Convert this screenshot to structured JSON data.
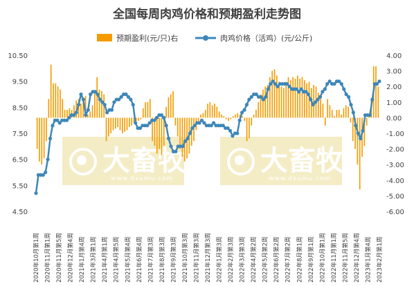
{
  "colors": {
    "bar": "#f59b00",
    "line": "#3d87b8",
    "watermark_bg": "#f4ecc5"
  },
  "watermark": {
    "brand": "大畜牧",
    "domain": "www.dxumu.com"
  },
  "chart_data": {
    "type": "bar+line",
    "title": "全国每周肉鸡价格和预期盈利走势图",
    "legend": {
      "placement": "top-center",
      "items": [
        "预期盈利(元/只)右",
        "肉鸡价格（活鸡）(元/公斤)"
      ]
    },
    "y_left": {
      "ylim": [
        4.5,
        10.5
      ],
      "ticks": [
        "4.50",
        "5.50",
        "6.50",
        "7.50",
        "8.50",
        "9.50",
        "10.50"
      ]
    },
    "y_right": {
      "ylim": [
        -6,
        4
      ],
      "ticks": [
        "-6.00",
        "-5.00",
        "-4.00",
        "-3.00",
        "-2.00",
        "-1.00",
        "0.00",
        "1.00",
        "2.00",
        "3.00",
        "4.00"
      ]
    },
    "x_tick_labels": [
      "2020年10月第1周",
      "2020年11月第1周",
      "2020年11月第5周",
      "2020年12月第4周",
      "2021年1月第4周",
      "2021年3月第1周",
      "2021年4月第1周",
      "2021年4月第5周",
      "2021年5月第4周",
      "2021年6月第4周",
      "2021年7月第3周",
      "2021年8月第3周",
      "2021年9月第3周",
      "2021年10月第3周",
      "2021年11月第3周",
      "2021年12月第3周",
      "2022年1月第3周",
      "2022年2月第3周",
      "2022年3月第3周",
      "2022年4月第2周",
      "2022年5月第2周",
      "2022年6月第2周",
      "2022年7月第2周",
      "2022年8月第1周",
      "2022年9月第1周",
      "2022年10月第1周",
      "2022年11月第1周",
      "2022年11月第5周",
      "2022年12月第4周",
      "2023年1月第4周",
      "2023年2月第1周"
    ],
    "series": [
      {
        "name": "预期盈利(元/只)右",
        "type": "bar",
        "axis": "right",
        "values": [
          -2.0,
          -2.8,
          -3.0,
          -2.6,
          -1.5,
          1.2,
          3.4,
          2.2,
          2.2,
          2.0,
          1.8,
          1.2,
          0.5,
          0.5,
          0.6,
          0.5,
          0.8,
          1.1,
          1.2,
          0.9,
          1.3,
          1.4,
          0.2,
          0.4,
          0.8,
          1.6,
          2.6,
          1.8,
          1.7,
          1.5,
          -1.5,
          -1.2,
          -1.0,
          -0.8,
          -0.7,
          -0.6,
          -0.8,
          -1.0,
          -0.9,
          -0.8,
          -0.6,
          -0.5,
          -0.3,
          -0.2,
          -0.2,
          -0.1,
          0.6,
          1.0,
          1.0,
          1.2,
          -1.5,
          -1.8,
          -2.3,
          -2.0,
          -2.4,
          -1.8,
          0.7,
          1.3,
          1.5,
          1.7,
          -0.5,
          -1.2,
          -2.0,
          -2.5,
          -2.8,
          -2.6,
          -2.3,
          -1.8,
          -1.5,
          -0.8,
          -0.3,
          0.2,
          0.3,
          0.5,
          0.9,
          1.0,
          0.8,
          0.9,
          0.7,
          0.4,
          0.2,
          0.1,
          -0.1,
          -0.2,
          -0.1,
          0.1,
          0.2,
          0.3,
          0.2,
          0.1,
          -0.2,
          -1.5,
          -1.3,
          -0.5,
          0.2,
          0.5,
          1.0,
          1.5,
          1.8,
          2.0,
          2.1,
          2.6,
          3.0,
          3.1,
          2.7,
          2.3,
          2.0,
          1.9,
          2.3,
          2.6,
          2.4,
          2.6,
          2.5,
          2.7,
          2.5,
          2.6,
          2.4,
          2.2,
          2.3,
          1.9,
          2.1,
          2.0,
          1.6,
          1.4,
          0.9,
          -0.5,
          1.2,
          0.8,
          0.5,
          0.1,
          0.5,
          0.5,
          0.2,
          0.6,
          0.8,
          0.7,
          -0.3,
          -1.5,
          -2.0,
          -3.0,
          -4.6,
          -2.5,
          -1.8,
          -0.5,
          0.2,
          1.2,
          3.3,
          3.3,
          2.0
        ]
      },
      {
        "name": "肉鸡价格（活鸡）(元/公斤)",
        "type": "line",
        "axis": "left",
        "values": [
          5.2,
          5.9,
          5.9,
          5.9,
          6.0,
          6.5,
          7.3,
          7.8,
          8.0,
          8.0,
          7.9,
          8.0,
          8.0,
          8.0,
          8.1,
          8.2,
          8.2,
          8.3,
          8.6,
          9.0,
          8.8,
          8.2,
          8.4,
          9.0,
          9.1,
          9.1,
          9.0,
          8.8,
          8.7,
          8.6,
          8.3,
          8.4,
          8.4,
          8.7,
          8.8,
          8.8,
          8.9,
          9.0,
          9.0,
          8.9,
          8.8,
          8.6,
          7.9,
          7.7,
          7.7,
          7.8,
          7.8,
          7.8,
          7.9,
          8.0,
          8.0,
          8.1,
          8.2,
          8.2,
          8.1,
          7.8,
          7.3,
          7.0,
          6.8,
          6.8,
          7.0,
          7.0,
          7.0,
          7.2,
          7.3,
          7.5,
          7.7,
          7.8,
          7.9,
          7.9,
          8.0,
          7.9,
          7.8,
          7.8,
          7.8,
          7.9,
          7.8,
          7.8,
          7.8,
          7.8,
          7.7,
          7.7,
          7.6,
          7.4,
          7.5,
          7.5,
          8.0,
          8.3,
          8.4,
          8.6,
          8.8,
          8.9,
          9.0,
          9.0,
          8.9,
          8.9,
          8.8,
          8.9,
          9.2,
          9.4,
          9.5,
          9.4,
          9.3,
          9.4,
          9.4,
          9.4,
          9.4,
          9.3,
          9.2,
          9.2,
          9.2,
          9.1,
          9.2,
          9.1,
          9.1,
          9.0,
          8.8,
          8.6,
          8.7,
          8.8,
          8.9,
          9.1,
          9.2,
          9.4,
          9.5,
          9.4,
          9.4,
          9.5,
          9.5,
          9.4,
          9.2,
          9.0,
          8.9,
          8.6,
          8.3,
          7.8,
          7.5,
          7.3,
          7.6,
          8.2,
          8.2,
          8.2,
          8.8,
          9.4,
          9.4,
          9.5
        ]
      }
    ]
  }
}
